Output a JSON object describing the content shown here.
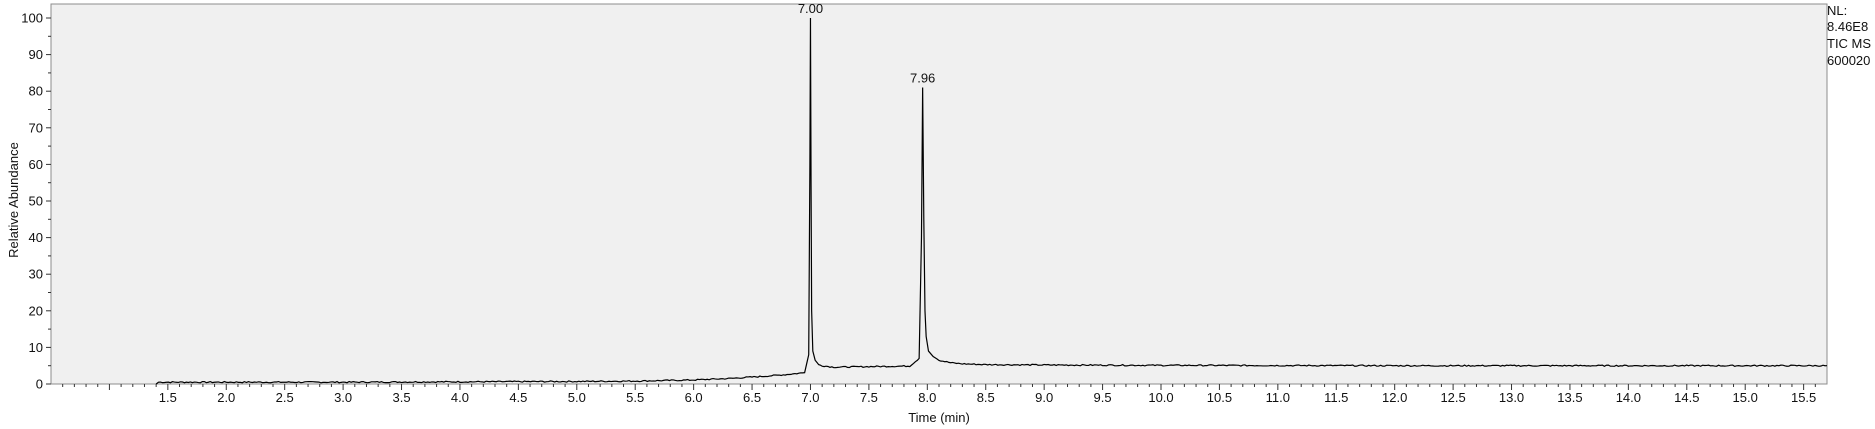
{
  "chart_data": {
    "type": "line",
    "xlabel": "Time (min)",
    "ylabel": "Relative Abundance",
    "xlim": [
      0.5,
      15.7
    ],
    "ylim": [
      0,
      100
    ],
    "x_ticks": [
      1.5,
      2.0,
      2.5,
      3.0,
      3.5,
      4.0,
      4.5,
      5.0,
      5.5,
      6.0,
      6.5,
      7.0,
      7.5,
      8.0,
      8.5,
      9.0,
      9.5,
      10.0,
      10.5,
      11.0,
      11.5,
      12.0,
      12.5,
      13.0,
      13.5,
      14.0,
      14.5,
      15.0,
      15.5
    ],
    "x_tick_labels": [
      "1.5",
      "2.0",
      "2.5",
      "3.0",
      "3.5",
      "4.0",
      "4.5",
      "5.0",
      "5.5",
      "6.0",
      "6.5",
      "7.0",
      "7.5",
      "8.0",
      "8.5",
      "9.0",
      "9.5",
      "10.0",
      "10.5",
      "11.0",
      "11.5",
      "12.0",
      "12.5",
      "13.0",
      "13.5",
      "14.0",
      "14.5",
      "15.0",
      "15.5"
    ],
    "y_ticks": [
      0,
      10,
      20,
      30,
      40,
      50,
      60,
      70,
      80,
      90,
      100
    ],
    "y_tick_labels": [
      "0",
      "10",
      "20",
      "30",
      "40",
      "50",
      "60",
      "70",
      "80",
      "90",
      "100"
    ],
    "peak_labels": [
      {
        "x": 7.0,
        "y": 100,
        "text": "7.00"
      },
      {
        "x": 7.96,
        "y": 81,
        "text": "7.96"
      }
    ],
    "series": [
      {
        "x": [
          1.4,
          1.42,
          2.0,
          3.0,
          4.0,
          5.0,
          5.5,
          6.0,
          6.3,
          6.6,
          6.8,
          6.95,
          6.985,
          6.995,
          7.0,
          7.005,
          7.01,
          7.02,
          7.04,
          7.07,
          7.1,
          7.2,
          7.4,
          7.6,
          7.85,
          7.93,
          7.95,
          7.96,
          7.97,
          7.98,
          7.99,
          8.01,
          8.05,
          8.1,
          8.2,
          8.3,
          8.5,
          9.0,
          10.0,
          12.0,
          14.0,
          15.7
        ],
        "y": [
          0,
          0.5,
          0.5,
          0.5,
          0.6,
          0.7,
          0.8,
          1.1,
          1.5,
          2.1,
          2.6,
          3.1,
          8,
          60,
          100,
          55,
          20,
          9,
          6.5,
          5.3,
          5.0,
          4.6,
          4.7,
          4.8,
          4.9,
          7,
          40,
          81,
          45,
          20,
          13,
          9,
          7.5,
          6.5,
          5.8,
          5.5,
          5.3,
          5.2,
          5.1,
          5.0,
          5.0,
          5.0
        ]
      }
    ],
    "grid": false,
    "background": "#f0f0f0",
    "line_color": "#000000"
  },
  "info": {
    "nl_label": "NL:",
    "nl_value": "8.46E8",
    "scan_filter": "TIC  MS",
    "file_name": "600020"
  }
}
